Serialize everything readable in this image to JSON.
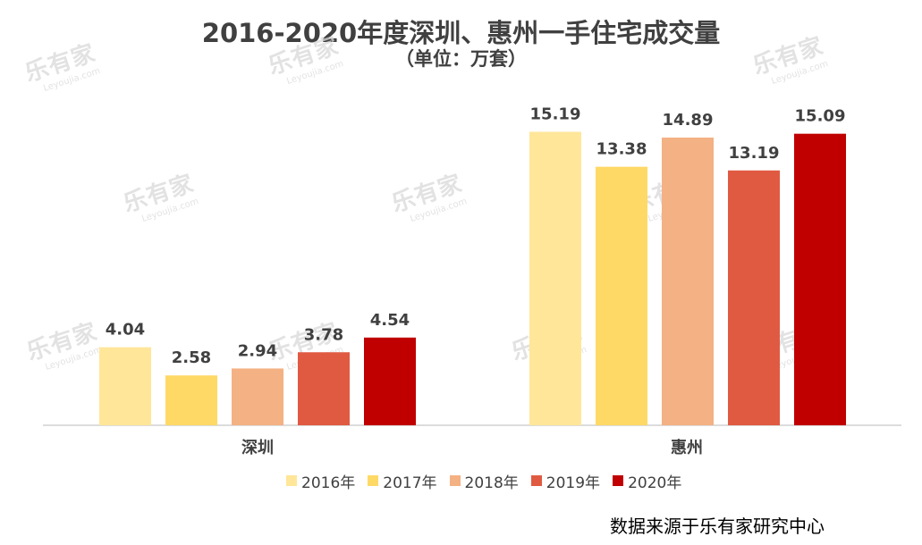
{
  "chart_data": {
    "type": "bar",
    "title": "2016-2020年度深圳、惠州一手住宅成交量",
    "subtitle": "（单位：万套）",
    "categories": [
      "深圳",
      "惠州"
    ],
    "series": [
      {
        "name": "2016年",
        "color": "#ffe699",
        "values": [
          4.04,
          15.19
        ]
      },
      {
        "name": "2017年",
        "color": "#ffd966",
        "values": [
          2.58,
          13.38
        ]
      },
      {
        "name": "2018年",
        "color": "#f4b183",
        "values": [
          2.94,
          14.89
        ]
      },
      {
        "name": "2019年",
        "color": "#e05a42",
        "values": [
          3.78,
          13.19
        ]
      },
      {
        "name": "2020年",
        "color": "#c00000",
        "values": [
          4.54,
          15.09
        ]
      }
    ],
    "data_labels": [
      [
        "4.04",
        "15.19"
      ],
      [
        "2.58",
        "13.38"
      ],
      [
        "2.94",
        "14.89"
      ],
      [
        "3.78",
        "13.19"
      ],
      [
        "4.54",
        "15.09"
      ]
    ],
    "ylim": [
      0,
      16
    ],
    "grid": false,
    "legend_position": "bottom",
    "source": "数据来源于乐有家研究中心"
  },
  "watermark": {
    "brand": "乐有家",
    "domain": "Leyoujia.com"
  }
}
